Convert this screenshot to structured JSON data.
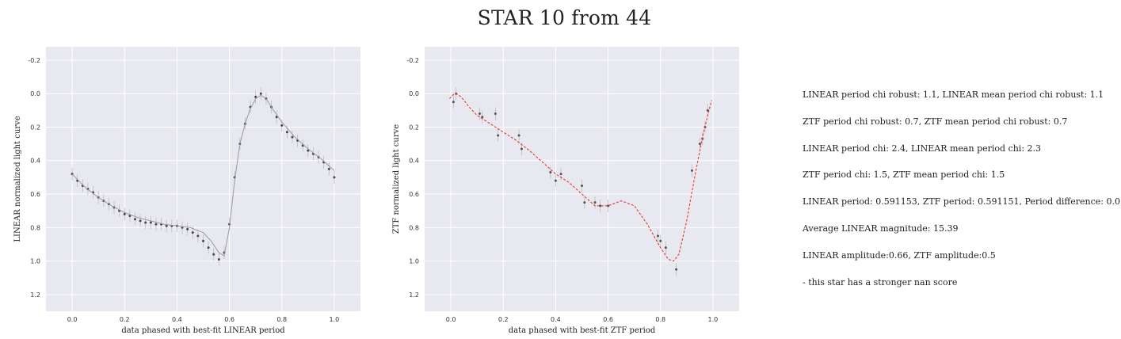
{
  "title": "STAR 10 from 44",
  "chart_data": [
    {
      "type": "scatter",
      "xlabel": "data phased with best-fit LINEAR period",
      "ylabel": "LINEAR normalized light curve",
      "xlim": [
        -0.1,
        1.1
      ],
      "ylim": [
        1.3,
        -0.28
      ],
      "y_inverted": true,
      "grid": true,
      "xticks": [
        "0.0",
        "0.2",
        "0.4",
        "0.6",
        "0.8",
        "1.0"
      ],
      "yticks": [
        "-0.2",
        "0.0",
        "0.2",
        "0.4",
        "0.6",
        "0.8",
        "1.0",
        "1.2"
      ],
      "series": [
        {
          "kind": "points",
          "x": [
            0.0,
            0.02,
            0.04,
            0.06,
            0.08,
            0.1,
            0.12,
            0.14,
            0.16,
            0.18,
            0.2,
            0.22,
            0.24,
            0.26,
            0.28,
            0.3,
            0.32,
            0.34,
            0.36,
            0.38,
            0.4,
            0.42,
            0.44,
            0.46,
            0.48,
            0.5,
            0.52,
            0.54,
            0.56,
            0.58,
            0.6,
            0.62,
            0.64,
            0.66,
            0.68,
            0.7,
            0.72,
            0.74,
            0.76,
            0.78,
            0.8,
            0.82,
            0.84,
            0.86,
            0.88,
            0.9,
            0.92,
            0.94,
            0.96,
            0.98,
            1.0
          ],
          "y": [
            0.48,
            0.52,
            0.55,
            0.57,
            0.59,
            0.62,
            0.64,
            0.66,
            0.68,
            0.7,
            0.72,
            0.73,
            0.75,
            0.76,
            0.77,
            0.77,
            0.78,
            0.78,
            0.79,
            0.79,
            0.79,
            0.8,
            0.81,
            0.83,
            0.85,
            0.88,
            0.92,
            0.96,
            0.99,
            0.95,
            0.78,
            0.5,
            0.3,
            0.18,
            0.08,
            0.02,
            0.0,
            0.03,
            0.08,
            0.14,
            0.19,
            0.23,
            0.26,
            0.28,
            0.31,
            0.34,
            0.36,
            0.38,
            0.41,
            0.45,
            0.5
          ],
          "color": "#222222"
        },
        {
          "kind": "line",
          "x": [
            0.0,
            0.05,
            0.1,
            0.15,
            0.2,
            0.25,
            0.3,
            0.35,
            0.4,
            0.45,
            0.5,
            0.53,
            0.56,
            0.58,
            0.6,
            0.62,
            0.64,
            0.66,
            0.68,
            0.7,
            0.72,
            0.74,
            0.76,
            0.8,
            0.85,
            0.9,
            0.95,
            1.0
          ],
          "y": [
            0.48,
            0.56,
            0.62,
            0.67,
            0.71,
            0.74,
            0.76,
            0.78,
            0.79,
            0.8,
            0.83,
            0.88,
            0.95,
            0.97,
            0.8,
            0.52,
            0.3,
            0.18,
            0.09,
            0.03,
            0.01,
            0.03,
            0.08,
            0.17,
            0.26,
            0.33,
            0.39,
            0.46
          ],
          "color": "#9a9a9a"
        }
      ]
    },
    {
      "type": "scatter",
      "xlabel": "data phased with best-fit ZTF period",
      "ylabel": "ZTF normalized light curve",
      "xlim": [
        -0.1,
        1.1
      ],
      "ylim": [
        1.3,
        -0.28
      ],
      "y_inverted": true,
      "grid": true,
      "xticks": [
        "0.0",
        "0.2",
        "0.4",
        "0.6",
        "0.8",
        "1.0"
      ],
      "yticks": [
        "-0.2",
        "0.0",
        "0.2",
        "0.4",
        "0.6",
        "0.8",
        "1.0",
        "1.2"
      ],
      "series": [
        {
          "kind": "points",
          "x": [
            0.01,
            0.02,
            0.11,
            0.12,
            0.17,
            0.18,
            0.26,
            0.27,
            0.38,
            0.4,
            0.42,
            0.5,
            0.51,
            0.55,
            0.57,
            0.6,
            0.79,
            0.8,
            0.82,
            0.86,
            0.92,
            0.95,
            0.96,
            0.97,
            0.98
          ],
          "y": [
            0.05,
            0.0,
            0.12,
            0.14,
            0.12,
            0.25,
            0.25,
            0.33,
            0.47,
            0.52,
            0.48,
            0.55,
            0.65,
            0.65,
            0.67,
            0.67,
            0.85,
            0.88,
            0.92,
            1.05,
            0.46,
            0.3,
            0.27,
            0.2,
            0.1
          ],
          "color": "#333333"
        },
        {
          "kind": "line",
          "x": [
            -0.005,
            0.01,
            0.02,
            0.04,
            0.07,
            0.1,
            0.15,
            0.2,
            0.25,
            0.3,
            0.35,
            0.4,
            0.45,
            0.5,
            0.55,
            0.6,
            0.65,
            0.7,
            0.75,
            0.8,
            0.83,
            0.85,
            0.87,
            0.9,
            0.93,
            0.96,
            0.98,
            0.995
          ],
          "y": [
            0.03,
            0.005,
            0.0,
            0.02,
            0.08,
            0.13,
            0.18,
            0.23,
            0.28,
            0.34,
            0.41,
            0.48,
            0.53,
            0.6,
            0.67,
            0.67,
            0.64,
            0.67,
            0.78,
            0.92,
            0.99,
            1.0,
            0.96,
            0.76,
            0.5,
            0.26,
            0.13,
            0.04
          ],
          "color": "#e8392b",
          "style": "dashed"
        }
      ]
    }
  ],
  "notes": [
    "LINEAR period chi robust: 1.1, LINEAR mean period chi robust: 1.1",
    "ZTF period chi robust: 0.7, ZTF mean period chi robust: 0.7",
    "LINEAR period chi: 2.4, LINEAR mean period chi: 2.3",
    "ZTF period chi: 1.5, ZTF mean period chi: 1.5",
    "LINEAR period: 0.591153, ZTF period: 0.591151, Period difference: 0.0",
    "Average LINEAR magnitude: 15.39",
    "LINEAR amplitude:0.66, ZTF amplitude:0.5",
    "- this star has a stronger nan score"
  ]
}
